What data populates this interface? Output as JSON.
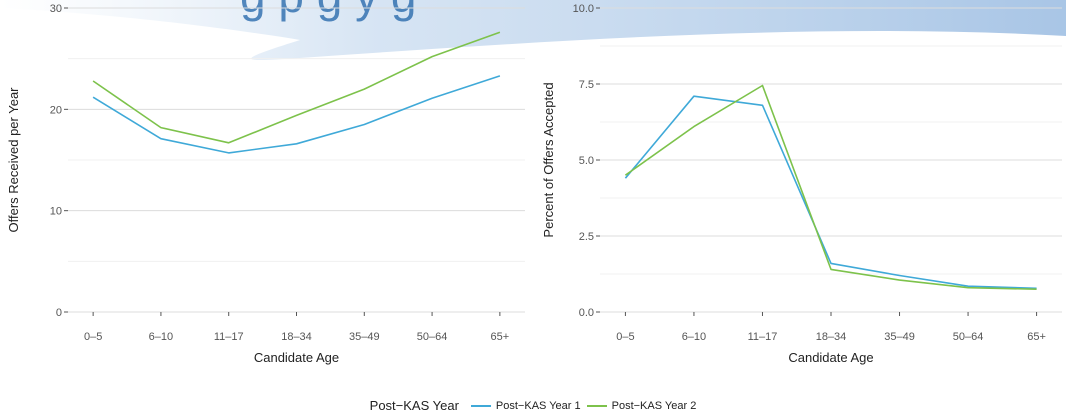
{
  "chart_data": [
    {
      "type": "line",
      "xlabel": "Candidate Age",
      "ylabel": "Offers Received per Year",
      "categories": [
        "0–5",
        "6–10",
        "11–17",
        "18–34",
        "35–49",
        "50–64",
        "65+"
      ],
      "ylim": [
        0,
        30
      ],
      "yticks": [
        "0",
        "10",
        "20",
        "30"
      ],
      "grid": true,
      "series": [
        {
          "name": "Post−KAS Year 1",
          "color": "#3fa9d8",
          "values": [
            21.2,
            17.1,
            15.7,
            16.6,
            18.5,
            21.1,
            23.3
          ]
        },
        {
          "name": "Post−KAS Year 2",
          "color": "#7dc24b",
          "values": [
            22.8,
            18.2,
            16.7,
            19.4,
            22.0,
            25.2,
            27.6
          ]
        }
      ]
    },
    {
      "type": "line",
      "xlabel": "Candidate Age",
      "ylabel": "Percent of Offers Accepted",
      "categories": [
        "0–5",
        "6–10",
        "11–17",
        "18–34",
        "35–49",
        "50–64",
        "65+"
      ],
      "ylim": [
        0,
        10
      ],
      "yticks": [
        "0.0",
        "2.5",
        "5.0",
        "7.5",
        "10.0"
      ],
      "grid": true,
      "series": [
        {
          "name": "Post−KAS Year 1",
          "color": "#3fa9d8",
          "values": [
            4.4,
            7.1,
            6.8,
            1.6,
            1.2,
            0.85,
            0.78
          ]
        },
        {
          "name": "Post−KAS Year 2",
          "color": "#7dc24b",
          "values": [
            4.5,
            6.1,
            7.45,
            1.4,
            1.05,
            0.8,
            0.75
          ]
        }
      ]
    }
  ],
  "legend": {
    "title": "Post−KAS Year",
    "items": [
      {
        "label": "Post−KAS Year 1",
        "color": "#3fa9d8"
      },
      {
        "label": "Post−KAS Year 2",
        "color": "#7dc24b"
      }
    ]
  },
  "header_banner": {
    "color": "#1f63a8"
  }
}
